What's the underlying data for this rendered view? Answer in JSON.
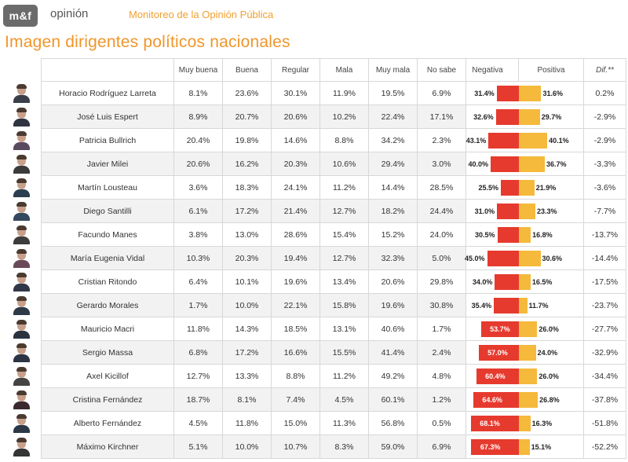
{
  "header": {
    "logo": "m&f",
    "section": "opinión",
    "report_title": "Monitoreo de la Opinión Pública",
    "page_title": "Imagen dirigentes políticos nacionales"
  },
  "columns": [
    "Muy buena",
    "Buena",
    "Regular",
    "Mala",
    "Muy mala",
    "No sabe",
    "Negativa",
    "Positiva",
    "Dif.**"
  ],
  "colors": {
    "negative": "#e63a2e",
    "positive": "#f5b93c",
    "title": "#f0962a",
    "report_title": "#f0a030"
  },
  "chart_data": {
    "type": "table",
    "title": "Imagen dirigentes políticos nacionales",
    "rows": [
      {
        "name": "Horacio Rodríguez Larreta",
        "muy_buena": "8.1%",
        "buena": "23.6%",
        "regular": "30.1%",
        "mala": "11.9%",
        "muy_mala": "19.5%",
        "no_sabe": "6.9%",
        "negativa": 31.4,
        "positiva": 31.6,
        "negativa_label": "31.4%",
        "positiva_label": "31.6%",
        "dif": "0.2%"
      },
      {
        "name": "José Luis Espert",
        "muy_buena": "8.9%",
        "buena": "20.7%",
        "regular": "20.6%",
        "mala": "10.2%",
        "muy_mala": "22.4%",
        "no_sabe": "17.1%",
        "negativa": 32.6,
        "positiva": 29.7,
        "negativa_label": "32.6%",
        "positiva_label": "29.7%",
        "dif": "-2.9%"
      },
      {
        "name": "Patricia Bullrich",
        "muy_buena": "20.4%",
        "buena": "19.8%",
        "regular": "14.6%",
        "mala": "8.8%",
        "muy_mala": "34.2%",
        "no_sabe": "2.3%",
        "negativa": 43.1,
        "positiva": 40.1,
        "negativa_label": "43.1%",
        "positiva_label": "40.1%",
        "dif": "-2.9%"
      },
      {
        "name": "Javier Milei",
        "muy_buena": "20.6%",
        "buena": "16.2%",
        "regular": "20.3%",
        "mala": "10.6%",
        "muy_mala": "29.4%",
        "no_sabe": "3.0%",
        "negativa": 40.0,
        "positiva": 36.7,
        "negativa_label": "40.0%",
        "positiva_label": "36.7%",
        "dif": "-3.3%"
      },
      {
        "name": "Martín Lousteau",
        "muy_buena": "3.6%",
        "buena": "18.3%",
        "regular": "24.1%",
        "mala": "11.2%",
        "muy_mala": "14.4%",
        "no_sabe": "28.5%",
        "negativa": 25.5,
        "positiva": 21.9,
        "negativa_label": "25.5%",
        "positiva_label": "21.9%",
        "dif": "-3.6%"
      },
      {
        "name": "Diego Santilli",
        "muy_buena": "6.1%",
        "buena": "17.2%",
        "regular": "21.4%",
        "mala": "12.7%",
        "muy_mala": "18.2%",
        "no_sabe": "24.4%",
        "negativa": 31.0,
        "positiva": 23.3,
        "negativa_label": "31.0%",
        "positiva_label": "23.3%",
        "dif": "-7.7%"
      },
      {
        "name": "Facundo Manes",
        "muy_buena": "3.8%",
        "buena": "13.0%",
        "regular": "28.6%",
        "mala": "15.4%",
        "muy_mala": "15.2%",
        "no_sabe": "24.0%",
        "negativa": 30.5,
        "positiva": 16.8,
        "negativa_label": "30.5%",
        "positiva_label": "16.8%",
        "dif": "-13.7%"
      },
      {
        "name": "María Eugenia Vidal",
        "muy_buena": "10.3%",
        "buena": "20.3%",
        "regular": "19.4%",
        "mala": "12.7%",
        "muy_mala": "32.3%",
        "no_sabe": "5.0%",
        "negativa": 45.0,
        "positiva": 30.6,
        "negativa_label": "45.0%",
        "positiva_label": "30.6%",
        "dif": "-14.4%"
      },
      {
        "name": "Cristian Ritondo",
        "muy_buena": "6.4%",
        "buena": "10.1%",
        "regular": "19.6%",
        "mala": "13.4%",
        "muy_mala": "20.6%",
        "no_sabe": "29.8%",
        "negativa": 34.0,
        "positiva": 16.5,
        "negativa_label": "34.0%",
        "positiva_label": "16.5%",
        "dif": "-17.5%"
      },
      {
        "name": "Gerardo Morales",
        "muy_buena": "1.7%",
        "buena": "10.0%",
        "regular": "22.1%",
        "mala": "15.8%",
        "muy_mala": "19.6%",
        "no_sabe": "30.8%",
        "negativa": 35.4,
        "positiva": 11.7,
        "negativa_label": "35.4%",
        "positiva_label": "11.7%",
        "dif": "-23.7%"
      },
      {
        "name": "Mauricio Macri",
        "muy_buena": "11.8%",
        "buena": "14.3%",
        "regular": "18.5%",
        "mala": "13.1%",
        "muy_mala": "40.6%",
        "no_sabe": "1.7%",
        "negativa": 53.7,
        "positiva": 26.0,
        "negativa_label": "53.7%",
        "positiva_label": "26.0%",
        "dif": "-27.7%"
      },
      {
        "name": "Sergio Massa",
        "muy_buena": "6.8%",
        "buena": "17.2%",
        "regular": "16.6%",
        "mala": "15.5%",
        "muy_mala": "41.4%",
        "no_sabe": "2.4%",
        "negativa": 57.0,
        "positiva": 24.0,
        "negativa_label": "57.0%",
        "positiva_label": "24.0%",
        "dif": "-32.9%"
      },
      {
        "name": "Axel Kicillof",
        "muy_buena": "12.7%",
        "buena": "13.3%",
        "regular": "8.8%",
        "mala": "11.2%",
        "muy_mala": "49.2%",
        "no_sabe": "4.8%",
        "negativa": 60.4,
        "positiva": 26.0,
        "negativa_label": "60.4%",
        "positiva_label": "26.0%",
        "dif": "-34.4%"
      },
      {
        "name": "Cristina Fernández",
        "muy_buena": "18.7%",
        "buena": "8.1%",
        "regular": "7.4%",
        "mala": "4.5%",
        "muy_mala": "60.1%",
        "no_sabe": "1.2%",
        "negativa": 64.6,
        "positiva": 26.8,
        "negativa_label": "64.6%",
        "positiva_label": "26.8%",
        "dif": "-37.8%"
      },
      {
        "name": "Alberto Fernández",
        "muy_buena": "4.5%",
        "buena": "11.8%",
        "regular": "15.0%",
        "mala": "11.3%",
        "muy_mala": "56.8%",
        "no_sabe": "0.5%",
        "negativa": 68.1,
        "positiva": 16.3,
        "negativa_label": "68.1%",
        "positiva_label": "16.3%",
        "dif": "-51.8%"
      },
      {
        "name": "Máximo Kirchner",
        "muy_buena": "5.1%",
        "buena": "10.0%",
        "regular": "10.7%",
        "mala": "8.3%",
        "muy_mala": "59.0%",
        "no_sabe": "6.9%",
        "negativa": 67.3,
        "positiva": 15.1,
        "negativa_label": "67.3%",
        "positiva_label": "15.1%",
        "dif": "-52.2%"
      }
    ]
  }
}
